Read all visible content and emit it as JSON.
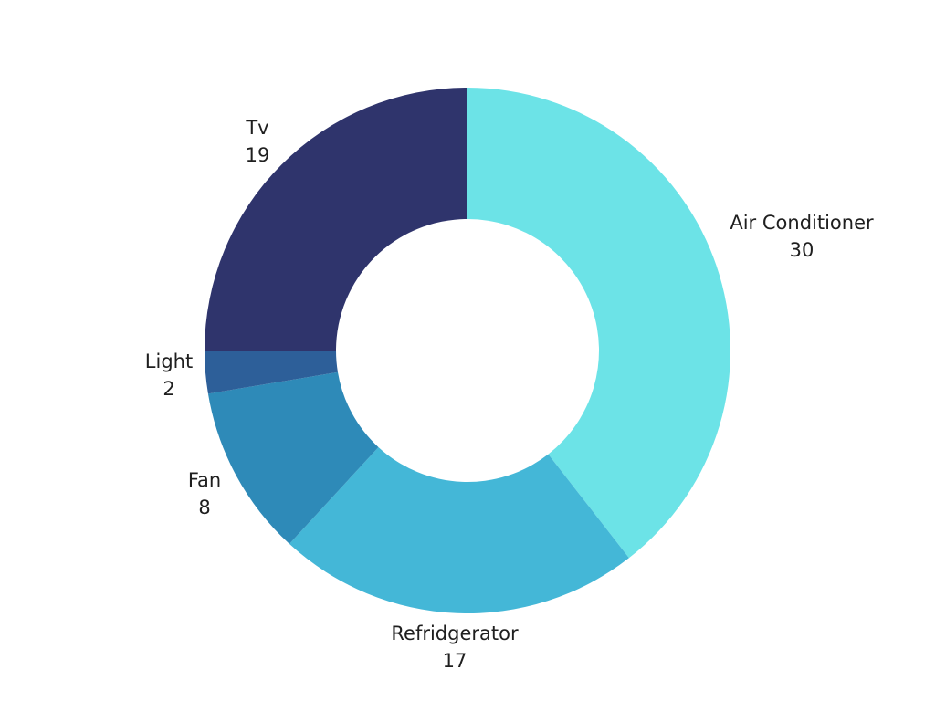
{
  "chart_data": {
    "type": "pie",
    "variant": "donut",
    "title": "",
    "categories": [
      "Air Conditioner",
      "Refridgerator",
      "Fan",
      "Light",
      "Tv"
    ],
    "values": [
      30,
      17,
      8,
      2,
      19
    ],
    "colors": [
      "#6ce3e7",
      "#44b7d7",
      "#2e8ab8",
      "#2d5f99",
      "#2f346c"
    ],
    "start_angle_deg": 0,
    "direction": "clockwise",
    "legend": "none",
    "data_labels": "outside, category name above value"
  }
}
